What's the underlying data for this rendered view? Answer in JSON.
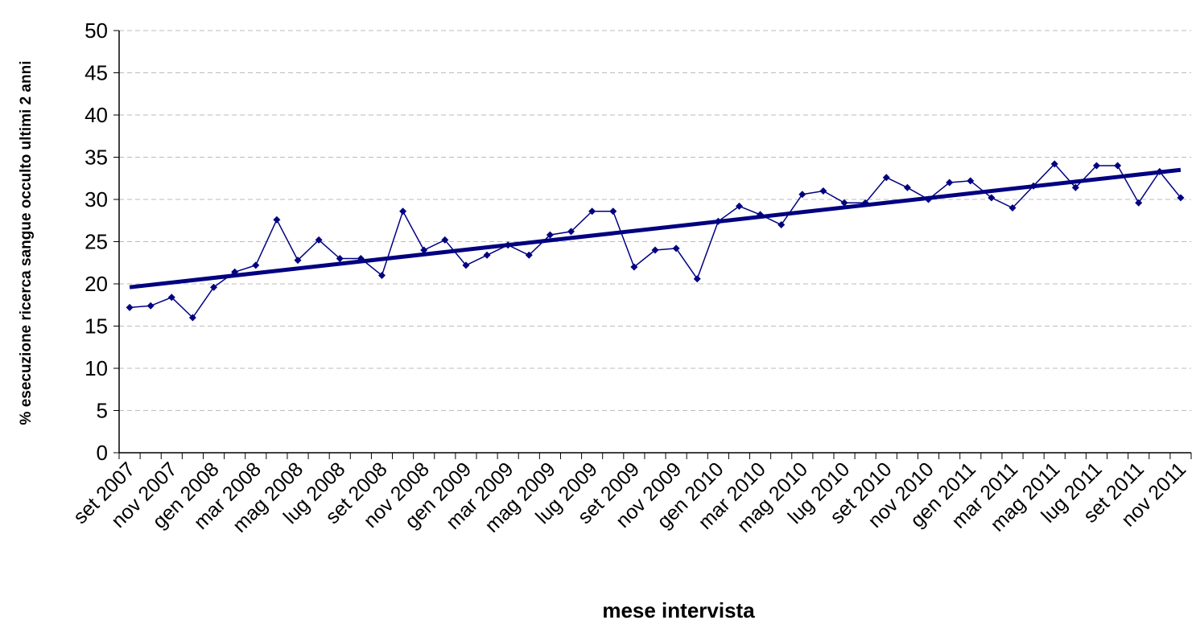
{
  "chart_data": {
    "type": "line",
    "x_label": "mese intervista",
    "y_label": "% esecuzione ricerca sangue occulto ultimi 2 anni",
    "categories": [
      "set 2007",
      null,
      "nov 2007",
      null,
      "gen 2008",
      null,
      "mar 2008",
      null,
      "mag 2008",
      null,
      "lug 2008",
      null,
      "set 2008",
      null,
      "nov 2008",
      null,
      "gen 2009",
      null,
      "mar 2009",
      null,
      "mag 2009",
      null,
      "lug 2009",
      null,
      "set 2009",
      null,
      "nov 2009",
      null,
      "gen 2010",
      null,
      "mar 2010",
      null,
      "mag 2010",
      null,
      "lug 2010",
      null,
      "set 2010",
      null,
      "nov 2010",
      null,
      "gen 2011",
      null,
      "mar 2011",
      null,
      "mag 2011",
      null,
      "lug 2011",
      null,
      "set 2011",
      null,
      "nov 2011"
    ],
    "values": [
      17.2,
      17.4,
      18.4,
      16.0,
      19.6,
      21.4,
      22.2,
      27.6,
      22.8,
      25.2,
      23.0,
      23.0,
      21.0,
      28.6,
      24.0,
      25.2,
      22.2,
      23.4,
      24.6,
      23.4,
      25.8,
      26.2,
      28.6,
      28.6,
      22.0,
      24.0,
      24.2,
      20.6,
      27.4,
      29.2,
      28.2,
      27.0,
      30.6,
      31.0,
      29.6,
      29.6,
      32.6,
      31.4,
      30.0,
      32.0,
      32.2,
      30.2,
      29.0,
      31.6,
      34.2,
      31.4,
      34.0,
      34.0,
      29.6,
      33.3,
      30.2
    ],
    "color": "#000080",
    "trendline": {
      "values": [
        19.6,
        33.5
      ],
      "color": "#000080"
    },
    "ylim": [
      0,
      50
    ],
    "yticks": [
      0,
      5,
      10,
      15,
      20,
      25,
      30,
      35,
      40,
      45,
      50
    ],
    "grid": true
  }
}
